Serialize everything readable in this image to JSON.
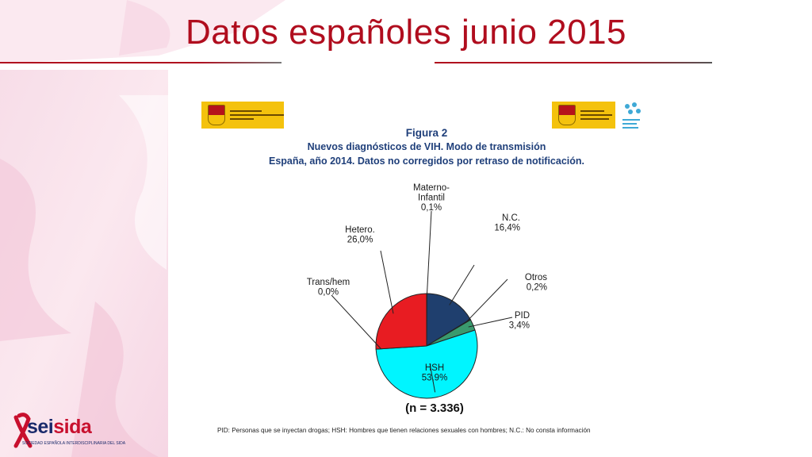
{
  "slide": {
    "title": "Datos españoles junio 2015"
  },
  "figure": {
    "number": "Figura 2",
    "subtitle_line1": "Nuevos diagnósticos de VIH. Modo de transmisión",
    "subtitle_line2": "España, año 2014. Datos no corregidos por retraso de notificación.",
    "sample_size": "(n = 3.336)",
    "footnote": "PID: Personas que se inyectan drogas; HSH: Hombres que tienen relaciones sexuales con hombres; N.C.: No consta información"
  },
  "logos": {
    "seisida_prefix": "sei",
    "seisida_suffix": "sida",
    "seisida_tagline": "SOCIEDAD ESPAÑOLA INTERDISCIPLINARIA DEL SIDA"
  },
  "chart_data": {
    "type": "pie",
    "title": "Figura 2",
    "slices": [
      {
        "name": "Materno-Infantil",
        "value": 0.1,
        "label": "0,1%",
        "color": "#1f3f6e"
      },
      {
        "name": "N.C.",
        "value": 16.4,
        "label": "16,4%",
        "color": "#1f3f6e"
      },
      {
        "name": "Otros",
        "value": 0.2,
        "label": "0,2%",
        "color": "#1f3f6e"
      },
      {
        "name": "PID",
        "value": 3.4,
        "label": "3,4%",
        "color": "#3a9a6e"
      },
      {
        "name": "HSH",
        "value": 53.9,
        "label": "53,9%",
        "color": "#00f5ff"
      },
      {
        "name": "Trans/hem",
        "value": 0.0,
        "label": "0,0%",
        "color": "#e81c22"
      },
      {
        "name": "Hetero.",
        "value": 26.0,
        "label": "26,0%",
        "color": "#e81c22"
      }
    ]
  }
}
